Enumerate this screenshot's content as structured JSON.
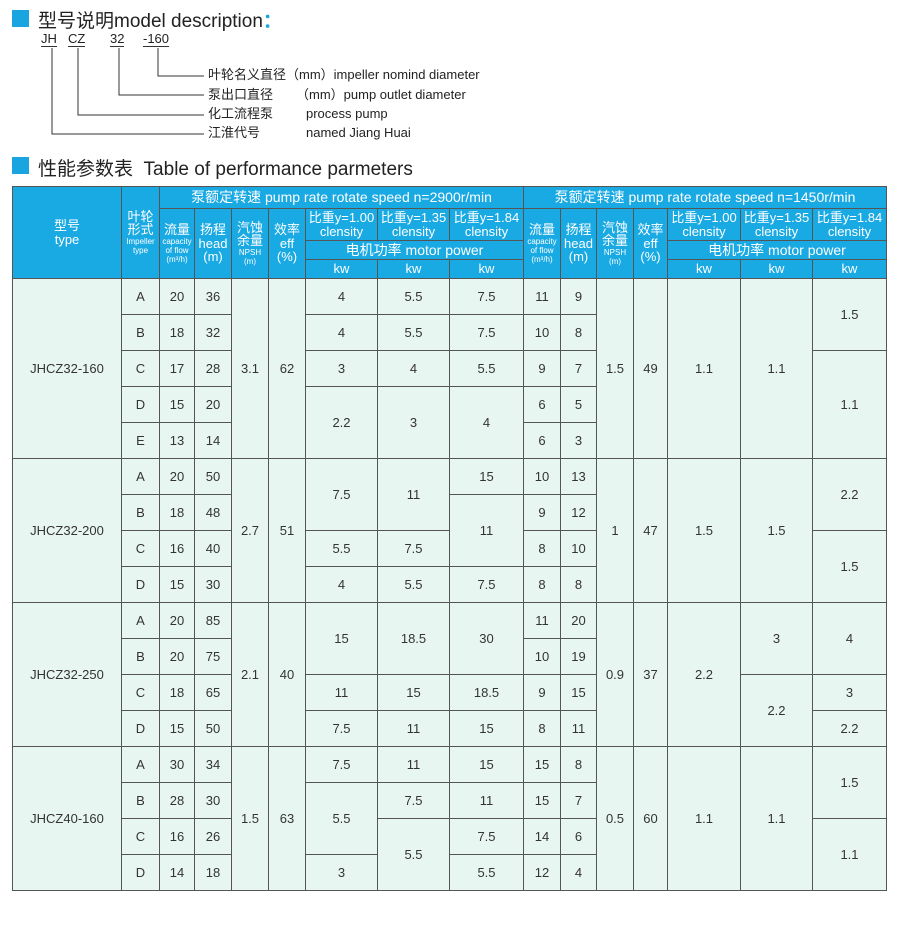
{
  "model_description": {
    "title": "型号说明model description",
    "colon": "：",
    "codes": [
      "JH",
      "CZ",
      "32",
      "-160"
    ],
    "items": [
      {
        "cn": "叶轮名义直径（mm）",
        "en": "impeller nomind diameter"
      },
      {
        "cn": "泵出口直径",
        "en": "（mm）pump outlet diameter"
      },
      {
        "cn": "化工流程泵",
        "en": "process pump"
      },
      {
        "cn": "江淮代号",
        "en": "named Jiang Huai"
      }
    ]
  },
  "performance": {
    "title": "性能参数表  Table of performance parmeters",
    "header": {
      "type_cn": "型号",
      "type_en": "type",
      "impeller_cn": "叶轮形式",
      "impeller_en": "Impeller type",
      "speed_2900": "泵额定转速  pump rate rotate speed n=2900r/min",
      "speed_1450": "泵额定转速  pump rate rotate speed n=1450r/min",
      "flow_cn": "流量",
      "flow_en": "capacity of flow (m³/h)",
      "head_cn": "扬程",
      "head_en": "head (m)",
      "npsh_cn": "汽蚀余量",
      "npsh_en": "NPSH (m)",
      "eff_cn": "效率",
      "eff_en": "eff (%)",
      "densities": [
        "比重y=1.00",
        "比重y=1.35",
        "比重y=1.84"
      ],
      "density_en": "clensity",
      "motor_power": "电机功率  motor power",
      "unit": "kw"
    },
    "sections": [
      {
        "model": "JHCZ32-160",
        "npsh": "3.1",
        "eff": "62",
        "npsh2": "1.5",
        "eff2": "49",
        "rows": [
          {
            "imp": "A",
            "cap": "20",
            "head": "36",
            "cap2": "11",
            "head2": "9"
          },
          {
            "imp": "B",
            "cap": "18",
            "head": "32",
            "cap2": "10",
            "head2": "8"
          },
          {
            "imp": "C",
            "cap": "17",
            "head": "28",
            "cap2": "9",
            "head2": "7"
          },
          {
            "imp": "D",
            "cap": "15",
            "head": "20",
            "cap2": "6",
            "head2": "5"
          },
          {
            "imp": "E",
            "cap": "13",
            "head": "14",
            "cap2": "6",
            "head2": "3"
          }
        ],
        "kw2900": [
          [
            {
              "v": "4",
              "span": 1
            },
            {
              "v": "4",
              "span": 1
            },
            {
              "v": "3",
              "span": 1
            },
            {
              "v": "2.2",
              "span": 2
            }
          ],
          [
            {
              "v": "5.5",
              "span": 1
            },
            {
              "v": "5.5",
              "span": 1
            },
            {
              "v": "4",
              "span": 1
            },
            {
              "v": "3",
              "span": 2
            }
          ],
          [
            {
              "v": "7.5",
              "span": 1
            },
            {
              "v": "7.5",
              "span": 1
            },
            {
              "v": "5.5",
              "span": 1
            },
            {
              "v": "4",
              "span": 2
            }
          ]
        ],
        "kw1450": [
          [
            {
              "v": "1.1",
              "span": 5
            }
          ],
          [
            {
              "v": "1.1",
              "span": 5
            }
          ],
          [
            {
              "v": "1.5",
              "span": 2
            },
            {
              "v": "1.1",
              "span": 3
            }
          ]
        ]
      },
      {
        "model": "JHCZ32-200",
        "npsh": "2.7",
        "eff": "51",
        "npsh2": "1",
        "eff2": "47",
        "rows": [
          {
            "imp": "A",
            "cap": "20",
            "head": "50",
            "cap2": "10",
            "head2": "13"
          },
          {
            "imp": "B",
            "cap": "18",
            "head": "48",
            "cap2": "9",
            "head2": "12"
          },
          {
            "imp": "C",
            "cap": "16",
            "head": "40",
            "cap2": "8",
            "head2": "10"
          },
          {
            "imp": "D",
            "cap": "15",
            "head": "30",
            "cap2": "8",
            "head2": "8"
          }
        ],
        "kw2900": [
          [
            {
              "v": "7.5",
              "span": 2
            },
            {
              "v": "5.5",
              "span": 1
            },
            {
              "v": "4",
              "span": 1
            }
          ],
          [
            {
              "v": "11",
              "span": 2
            },
            {
              "v": "7.5",
              "span": 1
            },
            {
              "v": "5.5",
              "span": 1
            }
          ],
          [
            {
              "v": "15",
              "span": 1
            },
            {
              "v": "11",
              "span": 2
            },
            {
              "v": "7.5",
              "span": 1
            }
          ]
        ],
        "kw1450": [
          [
            {
              "v": "1.5",
              "span": 4
            }
          ],
          [
            {
              "v": "1.5",
              "span": 4
            }
          ],
          [
            {
              "v": "2.2",
              "span": 2
            },
            {
              "v": "1.5",
              "span": 2
            }
          ]
        ]
      },
      {
        "model": "JHCZ32-250",
        "npsh": "2.1",
        "eff": "40",
        "npsh2": "0.9",
        "eff2": "37",
        "rows": [
          {
            "imp": "A",
            "cap": "20",
            "head": "85",
            "cap2": "11",
            "head2": "20"
          },
          {
            "imp": "B",
            "cap": "20",
            "head": "75",
            "cap2": "10",
            "head2": "19"
          },
          {
            "imp": "C",
            "cap": "18",
            "head": "65",
            "cap2": "9",
            "head2": "15"
          },
          {
            "imp": "D",
            "cap": "15",
            "head": "50",
            "cap2": "8",
            "head2": "11"
          }
        ],
        "kw2900": [
          [
            {
              "v": "15",
              "span": 2
            },
            {
              "v": "11",
              "span": 1
            },
            {
              "v": "7.5",
              "span": 1
            }
          ],
          [
            {
              "v": "18.5",
              "span": 2
            },
            {
              "v": "15",
              "span": 1
            },
            {
              "v": "11",
              "span": 1
            }
          ],
          [
            {
              "v": "30",
              "span": 2
            },
            {
              "v": "18.5",
              "span": 1
            },
            {
              "v": "15",
              "span": 1
            }
          ]
        ],
        "kw1450": [
          [
            {
              "v": "2.2",
              "span": 4
            }
          ],
          [
            {
              "v": "3",
              "span": 2
            },
            {
              "v": "2.2",
              "span": 2
            }
          ],
          [
            {
              "v": "4",
              "span": 2
            },
            {
              "v": "3",
              "span": 1
            },
            {
              "v": "2.2",
              "span": 1
            }
          ]
        ]
      },
      {
        "model": "JHCZ40-160",
        "npsh": "1.5",
        "eff": "63",
        "npsh2": "0.5",
        "eff2": "60",
        "rows": [
          {
            "imp": "A",
            "cap": "30",
            "head": "34",
            "cap2": "15",
            "head2": "8"
          },
          {
            "imp": "B",
            "cap": "28",
            "head": "30",
            "cap2": "15",
            "head2": "7"
          },
          {
            "imp": "C",
            "cap": "16",
            "head": "26",
            "cap2": "14",
            "head2": "6"
          },
          {
            "imp": "D",
            "cap": "14",
            "head": "18",
            "cap2": "12",
            "head2": "4"
          }
        ],
        "kw2900": [
          [
            {
              "v": "7.5",
              "span": 1
            },
            {
              "v": "5.5",
              "span": 2
            },
            {
              "v": "3",
              "span": 1
            }
          ],
          [
            {
              "v": "11",
              "span": 1
            },
            {
              "v": "7.5",
              "span": 1
            },
            {
              "v": "5.5",
              "span": 2
            }
          ],
          [
            {
              "v": "15",
              "span": 1
            },
            {
              "v": "11",
              "span": 1
            },
            {
              "v": "7.5",
              "span": 1
            },
            {
              "v": "5.5",
              "span": 1
            }
          ]
        ],
        "kw1450": [
          [
            {
              "v": "1.1",
              "span": 4
            }
          ],
          [
            {
              "v": "1.1",
              "span": 4
            }
          ],
          [
            {
              "v": "1.5",
              "span": 2
            },
            {
              "v": "1.1",
              "span": 2
            }
          ]
        ]
      }
    ]
  },
  "colors": {
    "accent": "#1ba5e0",
    "header_bg": "#19a9e3",
    "cell_bg": "#e8f6f2"
  }
}
